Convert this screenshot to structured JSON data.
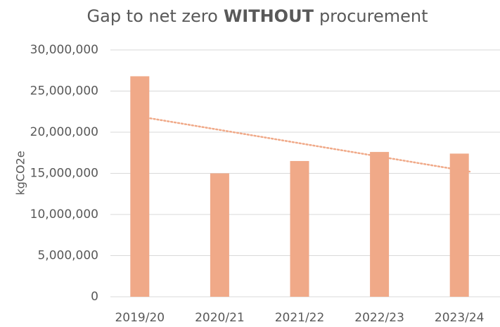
{
  "chart_data": {
    "type": "bar",
    "title": [
      {
        "text": "Gap to net zero",
        "bold": false
      },
      {
        "text": "WITHOUT",
        "bold": true
      },
      {
        "text": "procurement",
        "bold": false
      }
    ],
    "y_label": "kgCO2e",
    "categories": [
      "2019/20",
      "2020/21",
      "2021/22",
      "2022/23",
      "2023/24"
    ],
    "values": [
      26800000,
      15000000,
      16500000,
      17600000,
      17400000
    ],
    "color": "#f0a988",
    "trendline": "linear",
    "trendline_color": "#f0a988",
    "ylim": [
      0,
      30000000
    ],
    "yticks": [
      0,
      {
        "value": 5000000,
        "label": "5,000,000"
      },
      {
        "value": 10000000,
        "label": "10,000,000"
      },
      {
        "value": 15000000,
        "label": "15,000,000"
      },
      {
        "value": 20000000,
        "label": "20,000,000"
      },
      {
        "value": 25000000,
        "label": "25,000,000"
      },
      {
        "value": 30000000,
        "label": "30,000,000"
      }
    ],
    "grid": true
  }
}
